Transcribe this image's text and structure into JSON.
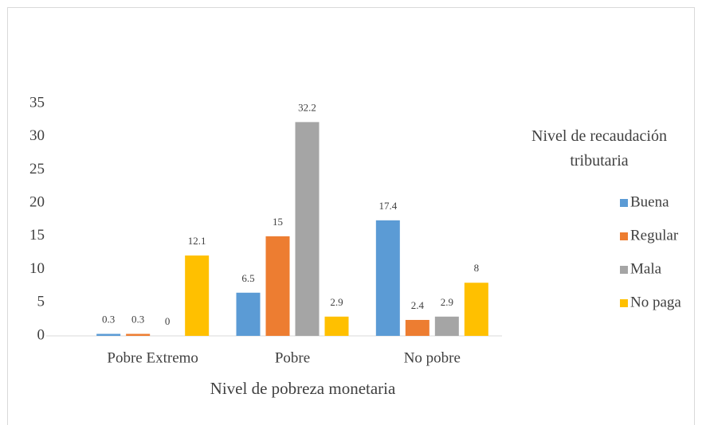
{
  "chart_data": {
    "type": "bar",
    "x_label": "Nivel de pobreza monetaria",
    "legend_title": "Nivel de recaudación tributaria",
    "legend_position": "right",
    "categories": [
      "Pobre Extremo",
      "Pobre",
      "No pobre"
    ],
    "series": [
      {
        "name": "Buena",
        "color": "#5b9bd5",
        "values": [
          0.3,
          6.5,
          17.4
        ]
      },
      {
        "name": "Regular",
        "color": "#ed7d31",
        "values": [
          0.3,
          15,
          2.4
        ]
      },
      {
        "name": "Mala",
        "color": "#a5a5a5",
        "values": [
          0,
          32.2,
          2.9
        ]
      },
      {
        "name": "No paga",
        "color": "#ffc000",
        "values": [
          12.1,
          2.9,
          8
        ]
      }
    ],
    "ylim": [
      0,
      35
    ],
    "yticks": [
      0,
      5,
      10,
      15,
      20,
      25,
      30,
      35
    ],
    "grid": false
  }
}
